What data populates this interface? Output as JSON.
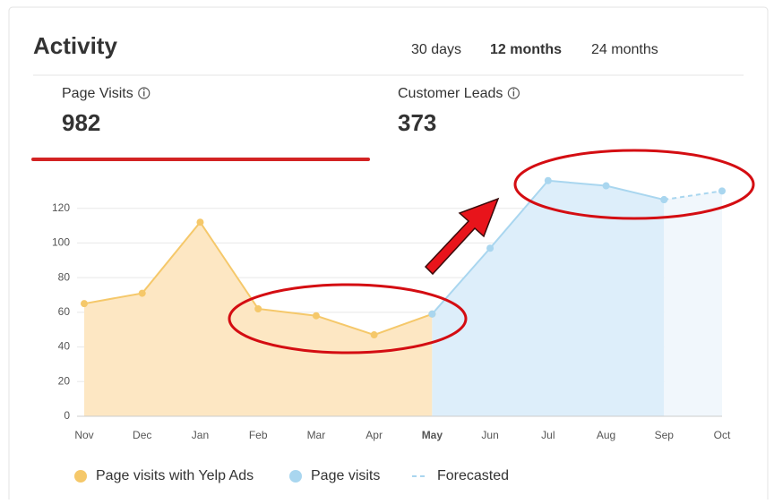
{
  "header": {
    "title": "Activity",
    "tabs": [
      "30 days",
      "12 months",
      "24 months"
    ],
    "active_tab": 1
  },
  "metrics": {
    "items": [
      {
        "label": "Page Visits",
        "value": 982
      },
      {
        "label": "Customer Leads",
        "value": 373
      }
    ],
    "selected": 0
  },
  "chart_data": {
    "type": "area",
    "categories": [
      "Nov",
      "Dec",
      "Jan",
      "Feb",
      "Mar",
      "Apr",
      "May",
      "Jun",
      "Jul",
      "Aug",
      "Sep",
      "Oct"
    ],
    "series": [
      {
        "name": "Page visits with Yelp Ads",
        "color": "#f5c86a",
        "fill": "#fde7c3",
        "values": [
          65,
          71,
          112,
          62,
          58,
          47,
          59,
          null,
          null,
          null,
          null,
          null
        ]
      },
      {
        "name": "Page visits",
        "color": "#a9d6ef",
        "fill": "#ddeefa",
        "values": [
          null,
          null,
          null,
          null,
          null,
          null,
          59,
          97,
          136,
          133,
          125,
          null
        ]
      },
      {
        "name": "Forecasted",
        "color": "#a9d6ef",
        "fill": "#f1f7fc",
        "dashed": true,
        "values": [
          null,
          null,
          null,
          null,
          null,
          null,
          null,
          null,
          null,
          null,
          125,
          130
        ]
      }
    ],
    "ylim": [
      0,
      140
    ],
    "yticks": [
      0,
      20,
      40,
      60,
      80,
      100,
      120
    ],
    "grid": true
  }
}
